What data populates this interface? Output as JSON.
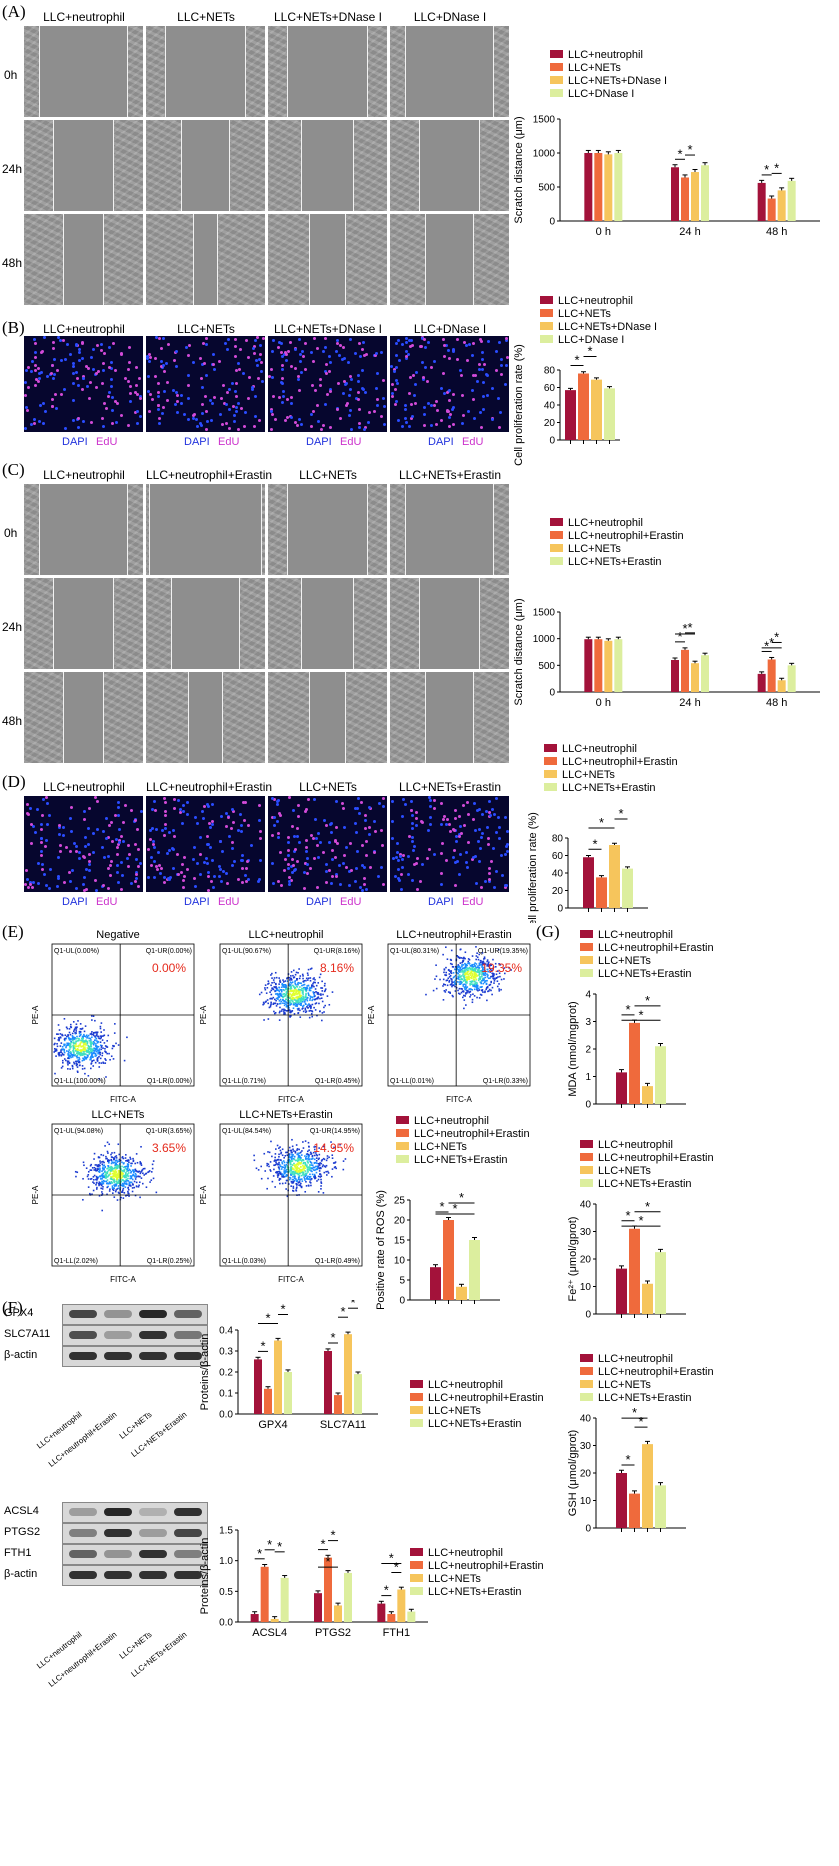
{
  "colors": {
    "c1": "#a3123a",
    "c2": "#ef6a3c",
    "c3": "#f6c55c",
    "c4": "#dcee9e"
  },
  "panelA": {
    "label": "(A)",
    "groups": [
      "LLC+neutrophil",
      "LLC+NETs",
      "LLC+NETs+DNase I",
      "LLC+DNase I"
    ],
    "times": [
      "0h",
      "24h",
      "48h"
    ]
  },
  "panelB": {
    "label": "(B)",
    "groups": [
      "LLC+neutrophil",
      "LLC+NETs",
      "LLC+NETs+DNase I",
      "LLC+DNase I"
    ],
    "dapi": "DAPI",
    "edu": "EdU"
  },
  "panelC": {
    "label": "(C)",
    "groups": [
      "LLC+neutrophil",
      "LLC+neutrophil+Erastin",
      "LLC+NETs",
      "LLC+NETs+Erastin"
    ],
    "times": [
      "0h",
      "24h",
      "48h"
    ]
  },
  "panelD": {
    "label": "(D)",
    "groups": [
      "LLC+neutrophil",
      "LLC+neutrophil+Erastin",
      "LLC+NETs",
      "LLC+NETs+Erastin"
    ],
    "dapi": "DAPI",
    "edu": "EdU"
  },
  "panelE": {
    "label": "(E)",
    "plots": [
      {
        "title": "Negative",
        "ul": "Q1-UL(0.00%)",
        "ur": "Q1-UR(0.00%)",
        "ll": "Q1-LL(100.00%)",
        "lr": "Q1-LR(0.00%)",
        "pct": "0.00%"
      },
      {
        "title": "LLC+neutrophil",
        "ul": "Q1-UL(90.67%)",
        "ur": "Q1-UR(8.16%)",
        "ll": "Q1-LL(0.71%)",
        "lr": "Q1-LR(0.45%)",
        "pct": "8.16%"
      },
      {
        "title": "LLC+neutrophil+Erastin",
        "ul": "Q1-UL(80.31%)",
        "ur": "Q1-UR(19.35%)",
        "ll": "Q1-LL(0.01%)",
        "lr": "Q1-LR(0.33%)",
        "pct": "19.35%"
      },
      {
        "title": "LLC+NETs",
        "ul": "Q1-UL(94.08%)",
        "ur": "Q1-UR(3.65%)",
        "ll": "Q1-LL(2.02%)",
        "lr": "Q1-LR(0.25%)",
        "pct": "3.65%"
      },
      {
        "title": "LLC+NETs+Erastin",
        "ul": "Q1-UL(84.54%)",
        "ur": "Q1-UR(14.95%)",
        "ll": "Q1-LL(0.03%)",
        "lr": "Q1-LR(0.49%)",
        "pct": "14.95%"
      }
    ],
    "xaxis": "FITC-A",
    "yaxis": "PE-A"
  },
  "panelF": {
    "label": "(F)",
    "blot1": [
      "GPX4",
      "SLC7A11",
      "β-actin"
    ],
    "blot2": [
      "ACSL4",
      "PTGS2",
      "FTH1",
      "β-actin"
    ],
    "lanes": [
      "LLC+neutrophil",
      "LLC+neutrophil+Erastin",
      "LLC+NETs",
      "LLC+NETs+Erastin"
    ]
  },
  "panelG": {
    "label": "(G)"
  },
  "chart_data": [
    {
      "id": "A-scratch",
      "type": "bar",
      "categories": [
        "0 h",
        "24 h",
        "48 h"
      ],
      "ylabel": "Scratch distance (μm)",
      "ylim": [
        0,
        1500
      ],
      "yticks": [
        0,
        500,
        1000,
        1500
      ],
      "series": [
        {
          "name": "LLC+neutrophil",
          "values": [
            1000,
            790,
            560
          ]
        },
        {
          "name": "LLC+NETs",
          "values": [
            1000,
            640,
            330
          ]
        },
        {
          "name": "LLC+NETs+DNase I",
          "values": [
            980,
            720,
            450
          ]
        },
        {
          "name": "LLC+DNase I",
          "values": [
            1000,
            820,
            590
          ]
        }
      ],
      "legend": "top-right"
    },
    {
      "id": "B-prolif",
      "type": "bar",
      "categories": [
        ""
      ],
      "ylabel": "Cell proliferation rate (%)",
      "ylim": [
        0,
        80
      ],
      "yticks": [
        0,
        20,
        40,
        60,
        80
      ],
      "series": [
        {
          "name": "LLC+neutrophil",
          "values": [
            57
          ]
        },
        {
          "name": "LLC+NETs",
          "values": [
            76
          ]
        },
        {
          "name": "LLC+NETs+DNase I",
          "values": [
            69
          ]
        },
        {
          "name": "LLC+DNase I",
          "values": [
            59
          ]
        }
      ]
    },
    {
      "id": "C-scratch",
      "type": "bar",
      "categories": [
        "0 h",
        "24 h",
        "48 h"
      ],
      "ylabel": "Scratch distance (μm)",
      "ylim": [
        0,
        1500
      ],
      "yticks": [
        0,
        500,
        1000,
        1500
      ],
      "series": [
        {
          "name": "LLC+neutrophil",
          "values": [
            990,
            600,
            340
          ]
        },
        {
          "name": "LLC+neutrophil+Erastin",
          "values": [
            990,
            790,
            610
          ]
        },
        {
          "name": "LLC+NETs",
          "values": [
            960,
            540,
            220
          ]
        },
        {
          "name": "LLC+NETs+Erastin",
          "values": [
            990,
            690,
            500
          ]
        }
      ]
    },
    {
      "id": "D-prolif",
      "type": "bar",
      "categories": [
        ""
      ],
      "ylabel": "Cell proliferation rate (%)",
      "ylim": [
        0,
        80
      ],
      "yticks": [
        0,
        20,
        40,
        60,
        80
      ],
      "series": [
        {
          "name": "LLC+neutrophil",
          "values": [
            58
          ]
        },
        {
          "name": "LLC+neutrophil+Erastin",
          "values": [
            35
          ]
        },
        {
          "name": "LLC+NETs",
          "values": [
            72
          ]
        },
        {
          "name": "LLC+NETs+Erastin",
          "values": [
            45
          ]
        }
      ]
    },
    {
      "id": "E-ros",
      "type": "bar",
      "categories": [
        ""
      ],
      "ylabel": "Positive rate of ROS (%)",
      "ylim": [
        0,
        25
      ],
      "yticks": [
        0,
        5,
        10,
        15,
        20,
        25
      ],
      "series": [
        {
          "name": "LLC+neutrophil",
          "values": [
            8.2
          ]
        },
        {
          "name": "LLC+neutrophil+Erastin",
          "values": [
            20
          ]
        },
        {
          "name": "LLC+NETs",
          "values": [
            3.3
          ]
        },
        {
          "name": "LLC+NETs+Erastin",
          "values": [
            15
          ]
        }
      ]
    },
    {
      "id": "F-wb1",
      "type": "bar",
      "categories": [
        "GPX4",
        "SLC7A11"
      ],
      "ylabel": "Proteins/β-actin",
      "ylim": [
        0,
        0.4
      ],
      "yticks": [
        0.0,
        0.1,
        0.2,
        0.3,
        0.4
      ],
      "series": [
        {
          "name": "LLC+neutrophil",
          "values": [
            0.26,
            0.3
          ]
        },
        {
          "name": "LLC+neutrophil+Erastin",
          "values": [
            0.12,
            0.09
          ]
        },
        {
          "name": "LLC+NETs",
          "values": [
            0.35,
            0.38
          ]
        },
        {
          "name": "LLC+NETs+Erastin",
          "values": [
            0.2,
            0.19
          ]
        }
      ]
    },
    {
      "id": "F-wb2",
      "type": "bar",
      "categories": [
        "ACSL4",
        "PTGS2",
        "FTH1"
      ],
      "ylabel": "Proteins/β-actin",
      "ylim": [
        0,
        1.5
      ],
      "yticks": [
        0.0,
        0.5,
        1.0,
        1.5
      ],
      "series": [
        {
          "name": "LLC+neutrophil",
          "values": [
            0.13,
            0.47,
            0.3
          ]
        },
        {
          "name": "LLC+neutrophil+Erastin",
          "values": [
            0.9,
            1.05,
            0.13
          ]
        },
        {
          "name": "LLC+NETs",
          "values": [
            0.05,
            0.27,
            0.53
          ]
        },
        {
          "name": "LLC+NETs+Erastin",
          "values": [
            0.72,
            0.8,
            0.17
          ]
        }
      ]
    },
    {
      "id": "G-mda",
      "type": "bar",
      "categories": [
        ""
      ],
      "ylabel": "MDA (nmol/mgprot)",
      "ylim": [
        0,
        4
      ],
      "yticks": [
        0,
        1,
        2,
        3,
        4
      ],
      "series": [
        {
          "name": "LLC+neutrophil",
          "values": [
            1.15
          ]
        },
        {
          "name": "LLC+neutrophil+Erastin",
          "values": [
            2.95
          ]
        },
        {
          "name": "LLC+NETs",
          "values": [
            0.65
          ]
        },
        {
          "name": "LLC+NETs+Erastin",
          "values": [
            2.1
          ]
        }
      ]
    },
    {
      "id": "G-fe",
      "type": "bar",
      "categories": [
        ""
      ],
      "ylabel": "Fe²⁺ (μmol/gprot)",
      "ylim": [
        0,
        40
      ],
      "yticks": [
        0,
        10,
        20,
        30,
        40
      ],
      "series": [
        {
          "name": "LLC+neutrophil",
          "values": [
            16.5
          ]
        },
        {
          "name": "LLC+neutrophil+Erastin",
          "values": [
            31
          ]
        },
        {
          "name": "LLC+NETs",
          "values": [
            11
          ]
        },
        {
          "name": "LLC+NETs+Erastin",
          "values": [
            22.5
          ]
        }
      ]
    },
    {
      "id": "G-gsh",
      "type": "bar",
      "categories": [
        ""
      ],
      "ylabel": "GSH (μmol/gprot)",
      "ylim": [
        0,
        40
      ],
      "yticks": [
        0,
        10,
        20,
        30,
        40
      ],
      "series": [
        {
          "name": "LLC+neutrophil",
          "values": [
            20
          ]
        },
        {
          "name": "LLC+neutrophil+Erastin",
          "values": [
            12.5
          ]
        },
        {
          "name": "LLC+NETs",
          "values": [
            30.5
          ]
        },
        {
          "name": "LLC+NETs+Erastin",
          "values": [
            15.5
          ]
        }
      ]
    }
  ]
}
